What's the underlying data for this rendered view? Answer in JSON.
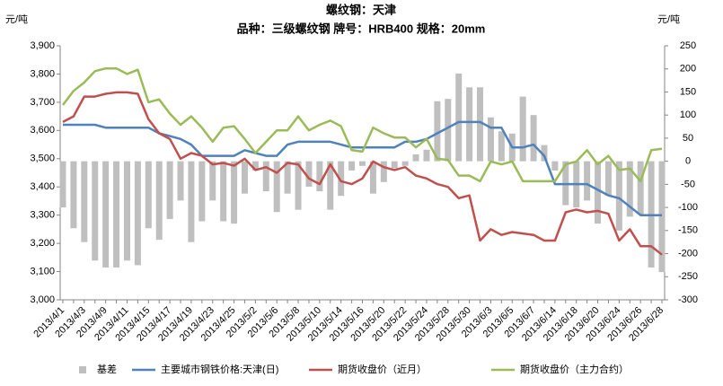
{
  "chart_data": {
    "type": "combo",
    "title": "螺纹钢：天津",
    "subtitle": "品种：三级螺纹钢 牌号：HRB400 规格：20mm",
    "y_label": "元/吨",
    "y2_label": "元/吨",
    "categories": [
      "2013/4/1",
      null,
      "2013/4/3",
      null,
      "2013/4/9",
      null,
      "2013/4/11",
      null,
      "2013/4/15",
      null,
      "2013/4/17",
      null,
      "2013/4/19",
      null,
      "2013/4/23",
      null,
      "2013/4/25",
      null,
      "2013/5/2",
      null,
      "2013/5/6",
      null,
      "2013/5/8",
      null,
      "2013/5/10",
      null,
      "2013/5/14",
      null,
      "2013/5/16",
      null,
      "2013/5/20",
      null,
      "2013/5/22",
      null,
      "2013/5/24",
      null,
      "2013/5/28",
      null,
      "2013/5/30",
      null,
      "2013/6/3",
      null,
      "2013/6/5",
      null,
      "2013/6/7",
      null,
      "2013/6/14",
      null,
      "2013/6/18",
      null,
      "2013/6/20",
      null,
      "2013/6/24",
      null,
      "2013/6/26",
      null,
      "2013/6/28"
    ],
    "ylim": [
      3000,
      3900
    ],
    "yticks": [
      {
        "value": 3000,
        "label": "3,000"
      },
      {
        "value": 3100,
        "label": "3,100"
      },
      {
        "value": 3200,
        "label": "3,200"
      },
      {
        "value": 3300,
        "label": "3,300"
      },
      {
        "value": 3400,
        "label": "3,400"
      },
      {
        "value": 3500,
        "label": "3,500"
      },
      {
        "value": 3600,
        "label": "3,600"
      },
      {
        "value": 3700,
        "label": "3,700"
      },
      {
        "value": 3800,
        "label": "3,800"
      },
      {
        "value": 3900,
        "label": "3,900"
      }
    ],
    "y2lim": [
      -300,
      250
    ],
    "y2ticks": [
      -300,
      -250,
      -200,
      -150,
      -100,
      -50,
      0,
      50,
      100,
      150,
      200,
      250
    ],
    "grid": false,
    "legend": "bottom",
    "series": [
      {
        "name": "基差",
        "type": "bar",
        "axis": "y2",
        "color": "#bfbfbf",
        "values": [
          -100,
          -145,
          -175,
          -215,
          -230,
          -230,
          -215,
          -225,
          -145,
          -170,
          -125,
          -85,
          -175,
          -130,
          -85,
          -130,
          -135,
          -70,
          -20,
          -65,
          -110,
          -70,
          -105,
          -55,
          -65,
          -105,
          -75,
          -20,
          -10,
          -70,
          -45,
          -15,
          -10,
          15,
          25,
          130,
          135,
          190,
          160,
          160,
          95,
          65,
          60,
          140,
          100,
          35,
          -20,
          -95,
          -100,
          -85,
          -135,
          -75,
          -150,
          -120,
          -115,
          -230,
          -240
        ]
      },
      {
        "name": "主要城市钢铁价格:天津(日)",
        "type": "line",
        "color": "#4f81bd",
        "values": [
          3620,
          3620,
          3620,
          3620,
          3610,
          3610,
          3610,
          3610,
          3610,
          3590,
          3580,
          3570,
          3550,
          3510,
          3510,
          3510,
          3510,
          3530,
          3520,
          3510,
          3510,
          3550,
          3560,
          3560,
          3560,
          3560,
          3550,
          3540,
          3540,
          3540,
          3540,
          3540,
          3560,
          3560,
          3570,
          3590,
          3610,
          3630,
          3630,
          3630,
          3610,
          3610,
          3540,
          3540,
          3550,
          3510,
          3410,
          3410,
          3410,
          3410,
          3390,
          3370,
          3360,
          3330,
          3300,
          3300,
          3300
        ]
      },
      {
        "name": "期货收盘价（近月）",
        "type": "line",
        "color": "#c0504d",
        "values": [
          3630,
          3650,
          3720,
          3720,
          3730,
          3735,
          3735,
          3730,
          3640,
          3590,
          3570,
          3500,
          3520,
          3510,
          3480,
          3485,
          3475,
          3500,
          3460,
          3470,
          3450,
          3485,
          3480,
          3430,
          3410,
          3480,
          3420,
          3410,
          3430,
          3490,
          3470,
          3460,
          3470,
          3440,
          3430,
          3410,
          3400,
          3360,
          3370,
          3210,
          3250,
          3230,
          3240,
          3235,
          3230,
          3210,
          3210,
          3310,
          3320,
          3310,
          3315,
          3305,
          3210,
          3250,
          3190,
          3190,
          3160
        ]
      },
      {
        "name": "期货收盘价（主力合约）",
        "type": "line",
        "color": "#9bbb59",
        "values": [
          3690,
          3740,
          3770,
          3810,
          3820,
          3820,
          3800,
          3815,
          3700,
          3710,
          3660,
          3620,
          3650,
          3610,
          3560,
          3610,
          3615,
          3570,
          3520,
          3560,
          3600,
          3600,
          3650,
          3600,
          3620,
          3635,
          3615,
          3530,
          3525,
          3610,
          3590,
          3575,
          3575,
          3540,
          3570,
          3500,
          3495,
          3440,
          3440,
          3420,
          3490,
          3480,
          3490,
          3420,
          3420,
          3420,
          3420,
          3480,
          3490,
          3530,
          3480,
          3510,
          3460,
          3465,
          3420,
          3530,
          3535
        ]
      }
    ]
  }
}
